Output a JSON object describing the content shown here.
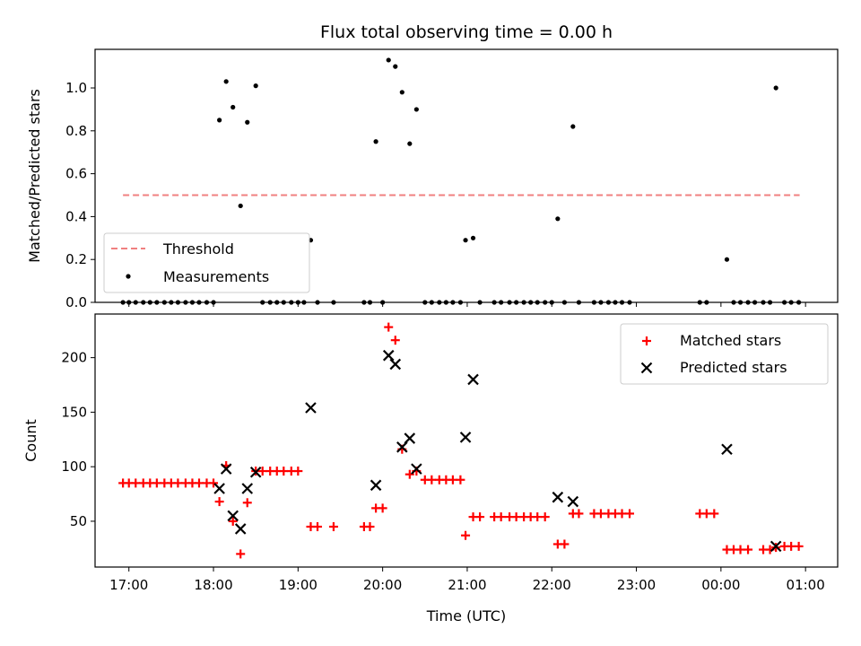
{
  "chart_data": [
    {
      "type": "scatter",
      "title": "Flux total observing time = 0.00 h",
      "xlabel": "",
      "ylabel": "Matched/Predicted stars",
      "ylim": [
        0,
        1.18
      ],
      "yticks": [
        0.0,
        0.2,
        0.4,
        0.6,
        0.8,
        1.0
      ],
      "ytick_labels": [
        "0.0",
        "0.2",
        "0.4",
        "0.6",
        "0.8",
        "1.0"
      ],
      "xlim_hours": [
        16.6,
        25.38
      ],
      "xaxis_labels_shown": false,
      "legend": {
        "position": "lower left"
      },
      "threshold": {
        "name": "Threshold",
        "value": 0.5,
        "x": [
          16.93,
          24.93
        ],
        "color": "#f08080"
      },
      "measurements": {
        "name": "Measurements",
        "color": "#000000",
        "x": [
          16.93,
          17.0,
          17.08,
          17.17,
          17.25,
          17.33,
          17.42,
          17.5,
          17.58,
          17.67,
          17.75,
          17.83,
          17.92,
          18.0,
          18.07,
          18.15,
          18.23,
          18.32,
          18.4,
          18.5,
          18.58,
          18.67,
          18.75,
          18.83,
          18.92,
          19.0,
          19.07,
          19.15,
          19.23,
          19.42,
          19.78,
          19.85,
          19.92,
          20.0,
          20.07,
          20.15,
          20.23,
          20.32,
          20.4,
          20.5,
          20.58,
          20.67,
          20.75,
          20.83,
          20.92,
          20.98,
          21.07,
          21.15,
          21.32,
          21.4,
          21.5,
          21.58,
          21.67,
          21.75,
          21.83,
          21.92,
          22.0,
          22.07,
          22.15,
          22.25,
          22.32,
          22.5,
          22.58,
          22.67,
          22.75,
          22.83,
          22.92,
          23.75,
          23.83,
          24.07,
          24.15,
          24.23,
          24.32,
          24.4,
          24.5,
          24.58,
          24.65,
          24.75,
          24.83,
          24.92
        ],
        "y": [
          0,
          0,
          0,
          0,
          0,
          0,
          0,
          0,
          0,
          0,
          0,
          0,
          0,
          0,
          0.85,
          1.03,
          0.91,
          0.45,
          0.84,
          1.01,
          0,
          0,
          0,
          0,
          0,
          0,
          0,
          0.29,
          0,
          0,
          0,
          0,
          0.75,
          0,
          1.13,
          1.1,
          0.98,
          0.74,
          0.9,
          0,
          0,
          0,
          0,
          0,
          0,
          0.29,
          0.3,
          0,
          0,
          0,
          0,
          0,
          0,
          0,
          0,
          0,
          0,
          0.39,
          0,
          0.82,
          0,
          0,
          0,
          0,
          0,
          0,
          0,
          0,
          0,
          0.2,
          0,
          0,
          0,
          0,
          0,
          0,
          1.0,
          0,
          0,
          0
        ]
      }
    },
    {
      "type": "scatter",
      "title": "",
      "xlabel": "Time (UTC)",
      "ylabel": "Count",
      "ylim": [
        8,
        240
      ],
      "yticks": [
        50,
        100,
        150,
        200
      ],
      "ytick_labels": [
        "50",
        "100",
        "150",
        "200"
      ],
      "xlim_hours": [
        16.6,
        25.38
      ],
      "xticks_hours": [
        17,
        18,
        19,
        20,
        21,
        22,
        23,
        24,
        25
      ],
      "xtick_labels": [
        "17:00",
        "18:00",
        "19:00",
        "20:00",
        "21:00",
        "22:00",
        "23:00",
        "00:00",
        "01:00"
      ],
      "legend": {
        "position": "upper right"
      },
      "series": [
        {
          "name": "Matched stars",
          "marker": "plus",
          "color": "#ff0000",
          "x": [
            16.93,
            17.0,
            17.08,
            17.17,
            17.25,
            17.33,
            17.42,
            17.5,
            17.58,
            17.67,
            17.75,
            17.83,
            17.92,
            18.0,
            18.07,
            18.15,
            18.23,
            18.32,
            18.4,
            18.5,
            18.58,
            18.67,
            18.75,
            18.83,
            18.92,
            19.0,
            19.15,
            19.23,
            19.42,
            19.78,
            19.85,
            19.92,
            20.0,
            20.07,
            20.15,
            20.23,
            20.32,
            20.4,
            20.5,
            20.58,
            20.67,
            20.75,
            20.83,
            20.92,
            20.98,
            21.07,
            21.15,
            21.32,
            21.4,
            21.5,
            21.58,
            21.67,
            21.75,
            21.83,
            21.92,
            22.07,
            22.15,
            22.25,
            22.32,
            22.5,
            22.58,
            22.67,
            22.75,
            22.83,
            22.92,
            23.75,
            23.83,
            23.92,
            24.07,
            24.15,
            24.23,
            24.32,
            24.5,
            24.58,
            24.65,
            24.75,
            24.83,
            24.92
          ],
          "y": [
            85,
            85,
            85,
            85,
            85,
            85,
            85,
            85,
            85,
            85,
            85,
            85,
            85,
            85,
            68,
            101,
            50,
            20,
            67,
            96,
            96,
            96,
            96,
            96,
            96,
            96,
            45,
            45,
            45,
            45,
            45,
            62,
            62,
            228,
            216,
            116,
            93,
            96,
            88,
            88,
            88,
            88,
            88,
            88,
            37,
            54,
            54,
            54,
            54,
            54,
            54,
            54,
            54,
            54,
            54,
            29,
            29,
            57,
            57,
            57,
            57,
            57,
            57,
            57,
            57,
            57,
            57,
            57,
            24,
            24,
            24,
            24,
            24,
            24,
            26,
            27,
            27,
            27
          ]
        },
        {
          "name": "Predicted stars",
          "marker": "x",
          "color": "#000000",
          "x": [
            18.07,
            18.15,
            18.23,
            18.32,
            18.4,
            18.5,
            19.15,
            19.92,
            20.07,
            20.15,
            20.23,
            20.32,
            20.4,
            20.98,
            21.07,
            22.07,
            22.25,
            24.07,
            24.65
          ],
          "y": [
            80,
            98,
            55,
            43,
            80,
            95,
            154,
            83,
            202,
            194,
            118,
            126,
            98,
            127,
            180,
            72,
            68,
            116,
            27
          ]
        }
      ]
    }
  ]
}
